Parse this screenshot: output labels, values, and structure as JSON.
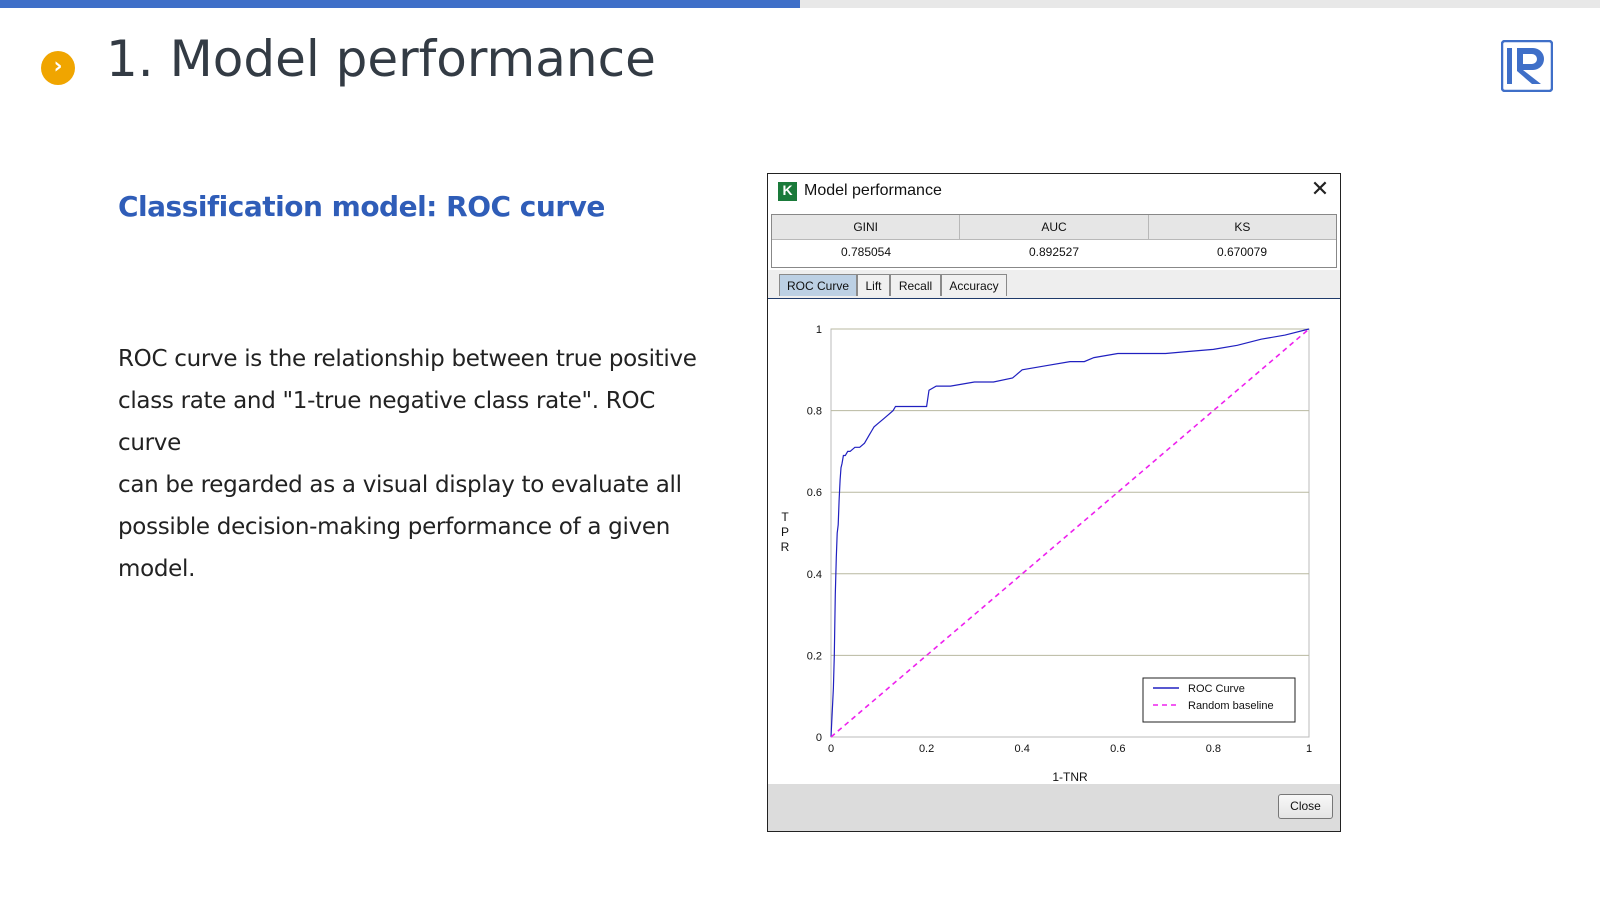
{
  "slide": {
    "progress": 0.5,
    "title": "1. Model performance",
    "bullet_icon": "chevron-right-icon",
    "accent_color": "#f0a500",
    "brand_color": "#3f6fc8",
    "subtitle": "Classification model: ROC curve",
    "body_lines": [
      "ROC curve is the relationship between true positive",
      "class rate and \"1-true negative class rate\". ROC curve",
      "can be regarded as a visual display to evaluate all",
      "possible decision-making performance of a given",
      "model."
    ],
    "logo_icon": "r-logo-icon"
  },
  "dialog": {
    "title": "Model performance",
    "app_icon_letter": "K",
    "close_icon": "close-icon",
    "metrics": {
      "headers": [
        "GINI",
        "AUC",
        "KS"
      ],
      "values": [
        "0.785054",
        "0.892527",
        "0.670079"
      ]
    },
    "tabs": [
      "ROC Curve",
      "Lift",
      "Recall",
      "Accuracy"
    ],
    "active_tab": "ROC Curve",
    "close_button": "Close"
  },
  "chart_data": {
    "type": "line",
    "xlabel": "1-TNR",
    "ylabel": "TPR",
    "xlim": [
      0,
      1
    ],
    "ylim": [
      0,
      1
    ],
    "xticks": [
      "0",
      "0.2",
      "0.4",
      "0.6",
      "0.8",
      "1"
    ],
    "yticks": [
      "0",
      "0.2",
      "0.4",
      "0.6",
      "0.8",
      "1"
    ],
    "grid": "horizontal",
    "legend_position": "bottom-right",
    "series": [
      {
        "name": "ROC Curve",
        "color": "#2020c0",
        "style": "solid",
        "x": [
          0,
          0.003,
          0.005,
          0.007,
          0.009,
          0.011,
          0.013,
          0.015,
          0.017,
          0.019,
          0.021,
          0.023,
          0.026,
          0.03,
          0.035,
          0.04,
          0.05,
          0.06,
          0.07,
          0.08,
          0.085,
          0.09,
          0.1,
          0.11,
          0.12,
          0.13,
          0.135,
          0.14,
          0.2,
          0.205,
          0.22,
          0.25,
          0.3,
          0.34,
          0.38,
          0.4,
          0.45,
          0.5,
          0.53,
          0.55,
          0.6,
          0.65,
          0.7,
          0.75,
          0.8,
          0.85,
          0.9,
          0.95,
          1.0
        ],
        "y": [
          0,
          0.07,
          0.12,
          0.2,
          0.35,
          0.44,
          0.5,
          0.52,
          0.58,
          0.63,
          0.66,
          0.67,
          0.69,
          0.69,
          0.7,
          0.7,
          0.71,
          0.71,
          0.72,
          0.74,
          0.75,
          0.76,
          0.77,
          0.78,
          0.79,
          0.8,
          0.81,
          0.81,
          0.81,
          0.85,
          0.86,
          0.86,
          0.87,
          0.87,
          0.88,
          0.9,
          0.91,
          0.92,
          0.92,
          0.93,
          0.94,
          0.94,
          0.94,
          0.945,
          0.95,
          0.96,
          0.975,
          0.985,
          1.0
        ]
      },
      {
        "name": "Random baseline",
        "color": "#ee22ee",
        "style": "dashed",
        "x": [
          0,
          1
        ],
        "y": [
          0,
          1
        ]
      }
    ]
  }
}
